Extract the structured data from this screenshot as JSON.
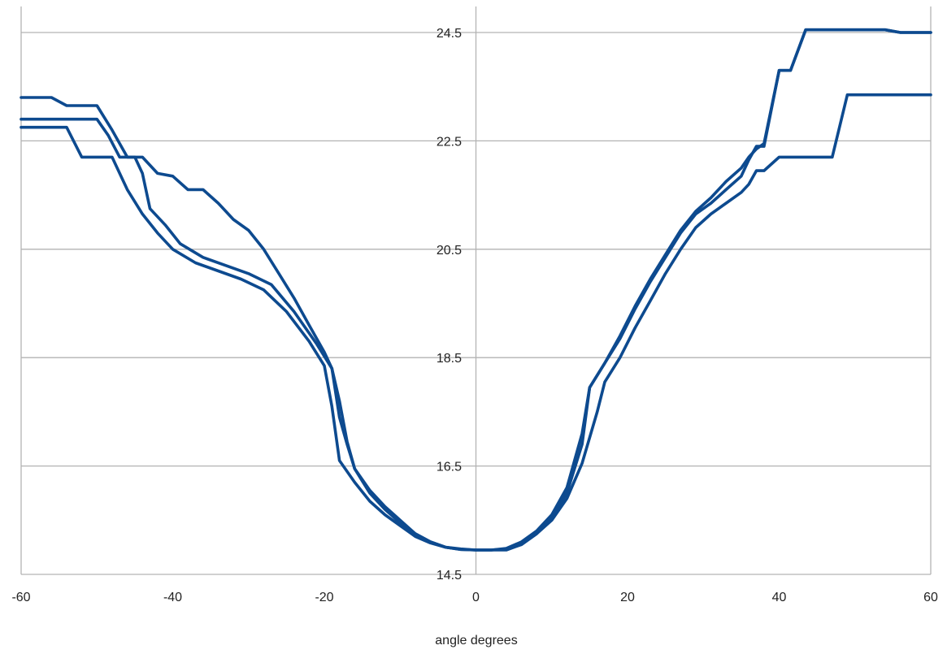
{
  "chart_data": {
    "type": "line",
    "title": "",
    "xlabel": "angle degrees",
    "ylabel": "",
    "xlim": [
      -60,
      60
    ],
    "ylim": [
      14.5,
      25
    ],
    "x_ticks": [
      -60,
      -40,
      -20,
      0,
      20,
      40,
      60
    ],
    "x_tick_labels": [
      "-60",
      "-40",
      "-20",
      "0",
      "20",
      "40",
      "60"
    ],
    "y_ticks": [
      14.5,
      16.5,
      18.5,
      20.5,
      22.5,
      24.5
    ],
    "y_tick_labels": [
      "14.5",
      "16.5",
      "18.5",
      "20.5",
      "22.5",
      "24.5"
    ],
    "grid": "horizontal",
    "legend": "none",
    "line_color": "#0d4a8f",
    "grid_color": "#b3b3b3",
    "series": [
      {
        "points": [
          [
            -60,
            23.3
          ],
          [
            -56,
            23.3
          ],
          [
            -54,
            23.15
          ],
          [
            -50,
            23.15
          ],
          [
            -48,
            22.7
          ],
          [
            -46,
            22.2
          ],
          [
            -44,
            22.2
          ],
          [
            -42,
            21.9
          ],
          [
            -40,
            21.85
          ],
          [
            -38,
            21.6
          ],
          [
            -36,
            21.6
          ],
          [
            -34,
            21.35
          ],
          [
            -32,
            21.05
          ],
          [
            -30,
            20.85
          ],
          [
            -28,
            20.5
          ],
          [
            -26,
            20.05
          ],
          [
            -24,
            19.6
          ],
          [
            -22,
            19.1
          ],
          [
            -20,
            18.6
          ],
          [
            -19,
            18.3
          ],
          [
            -18,
            17.7
          ],
          [
            -17,
            16.95
          ],
          [
            -16,
            16.45
          ],
          [
            -14,
            16.05
          ],
          [
            -12,
            15.75
          ],
          [
            -10,
            15.5
          ],
          [
            -8,
            15.25
          ],
          [
            -6,
            15.1
          ],
          [
            -4,
            15.0
          ],
          [
            -2,
            14.97
          ],
          [
            0,
            14.95
          ],
          [
            2,
            14.95
          ],
          [
            4,
            14.98
          ],
          [
            6,
            15.1
          ],
          [
            8,
            15.3
          ],
          [
            10,
            15.6
          ],
          [
            12,
            16.1
          ],
          [
            14,
            17.1
          ],
          [
            15,
            17.95
          ],
          [
            17,
            18.4
          ],
          [
            19,
            18.85
          ],
          [
            21,
            19.4
          ],
          [
            23,
            19.9
          ],
          [
            25,
            20.35
          ],
          [
            27,
            20.8
          ],
          [
            29,
            21.15
          ],
          [
            31,
            21.35
          ],
          [
            33,
            21.6
          ],
          [
            35,
            21.85
          ],
          [
            36,
            22.15
          ],
          [
            37,
            22.4
          ],
          [
            38,
            22.4
          ],
          [
            40,
            23.8
          ],
          [
            41.5,
            23.8
          ],
          [
            43.5,
            24.55
          ],
          [
            54,
            24.55
          ],
          [
            56,
            24.5
          ],
          [
            60,
            24.5
          ]
        ]
      },
      {
        "points": [
          [
            -60,
            22.9
          ],
          [
            -50,
            22.9
          ],
          [
            -48.5,
            22.6
          ],
          [
            -47,
            22.2
          ],
          [
            -45,
            22.2
          ],
          [
            -44,
            21.9
          ],
          [
            -43,
            21.25
          ],
          [
            -41,
            20.95
          ],
          [
            -39,
            20.6
          ],
          [
            -36,
            20.35
          ],
          [
            -33,
            20.2
          ],
          [
            -30,
            20.05
          ],
          [
            -27,
            19.85
          ],
          [
            -24,
            19.35
          ],
          [
            -21,
            18.75
          ],
          [
            -19,
            18.3
          ],
          [
            -18,
            17.4
          ],
          [
            -17,
            16.9
          ],
          [
            -16,
            16.45
          ],
          [
            -14,
            16.0
          ],
          [
            -12,
            15.7
          ],
          [
            -10,
            15.45
          ],
          [
            -8,
            15.25
          ],
          [
            -6,
            15.1
          ],
          [
            -4,
            15.0
          ],
          [
            -2,
            14.96
          ],
          [
            0,
            14.95
          ],
          [
            2,
            14.95
          ],
          [
            4,
            14.95
          ],
          [
            6,
            15.05
          ],
          [
            8,
            15.25
          ],
          [
            10,
            15.5
          ],
          [
            12,
            15.9
          ],
          [
            14,
            16.55
          ],
          [
            16,
            17.5
          ],
          [
            17,
            18.05
          ],
          [
            19,
            18.5
          ],
          [
            21,
            19.05
          ],
          [
            23,
            19.55
          ],
          [
            25,
            20.05
          ],
          [
            27,
            20.5
          ],
          [
            29,
            20.9
          ],
          [
            31,
            21.15
          ],
          [
            33,
            21.35
          ],
          [
            35,
            21.55
          ],
          [
            36,
            21.7
          ],
          [
            37,
            21.95
          ],
          [
            38,
            21.95
          ],
          [
            40,
            22.2
          ],
          [
            46,
            22.2
          ],
          [
            47,
            22.2
          ],
          [
            49,
            23.35
          ],
          [
            60,
            23.35
          ]
        ]
      },
      {
        "points": [
          [
            -60,
            22.75
          ],
          [
            -54,
            22.75
          ],
          [
            -52,
            22.2
          ],
          [
            -48,
            22.2
          ],
          [
            -46,
            21.6
          ],
          [
            -44,
            21.15
          ],
          [
            -42,
            20.8
          ],
          [
            -40,
            20.5
          ],
          [
            -37,
            20.25
          ],
          [
            -34,
            20.1
          ],
          [
            -31,
            19.95
          ],
          [
            -28,
            19.75
          ],
          [
            -25,
            19.35
          ],
          [
            -22,
            18.8
          ],
          [
            -20,
            18.35
          ],
          [
            -19,
            17.6
          ],
          [
            -18,
            16.6
          ],
          [
            -16,
            16.2
          ],
          [
            -14,
            15.85
          ],
          [
            -12,
            15.6
          ],
          [
            -10,
            15.4
          ],
          [
            -8,
            15.2
          ],
          [
            -6,
            15.08
          ],
          [
            -4,
            15.0
          ],
          [
            -2,
            14.96
          ],
          [
            0,
            14.95
          ],
          [
            2,
            14.95
          ],
          [
            4,
            14.97
          ],
          [
            6,
            15.05
          ],
          [
            8,
            15.25
          ],
          [
            10,
            15.55
          ],
          [
            12,
            16.0
          ],
          [
            14,
            16.9
          ],
          [
            15,
            17.95
          ],
          [
            17,
            18.4
          ],
          [
            19,
            18.9
          ],
          [
            21,
            19.45
          ],
          [
            23,
            19.95
          ],
          [
            25,
            20.4
          ],
          [
            27,
            20.85
          ],
          [
            29,
            21.2
          ],
          [
            31,
            21.45
          ],
          [
            33,
            21.75
          ],
          [
            35,
            22.0
          ],
          [
            36,
            22.2
          ],
          [
            37,
            22.35
          ],
          [
            38,
            22.45
          ],
          [
            40,
            23.8
          ],
          [
            41.5,
            23.8
          ],
          [
            43.5,
            24.55
          ],
          [
            54,
            24.55
          ],
          [
            56,
            24.5
          ],
          [
            60,
            24.5
          ]
        ]
      }
    ]
  }
}
